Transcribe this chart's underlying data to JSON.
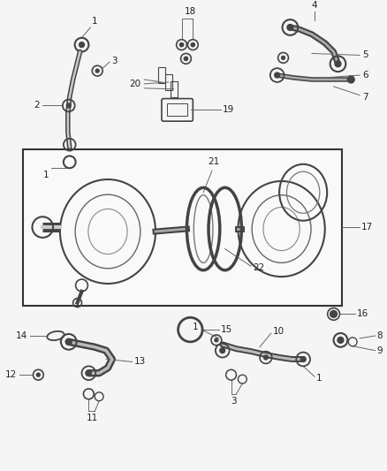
{
  "bg_color": "#f5f5f5",
  "fig_width": 4.38,
  "fig_height": 5.33,
  "dpi": 100,
  "line_color": "#444444",
  "label_color": "#222222",
  "label_fontsize": 7.5
}
